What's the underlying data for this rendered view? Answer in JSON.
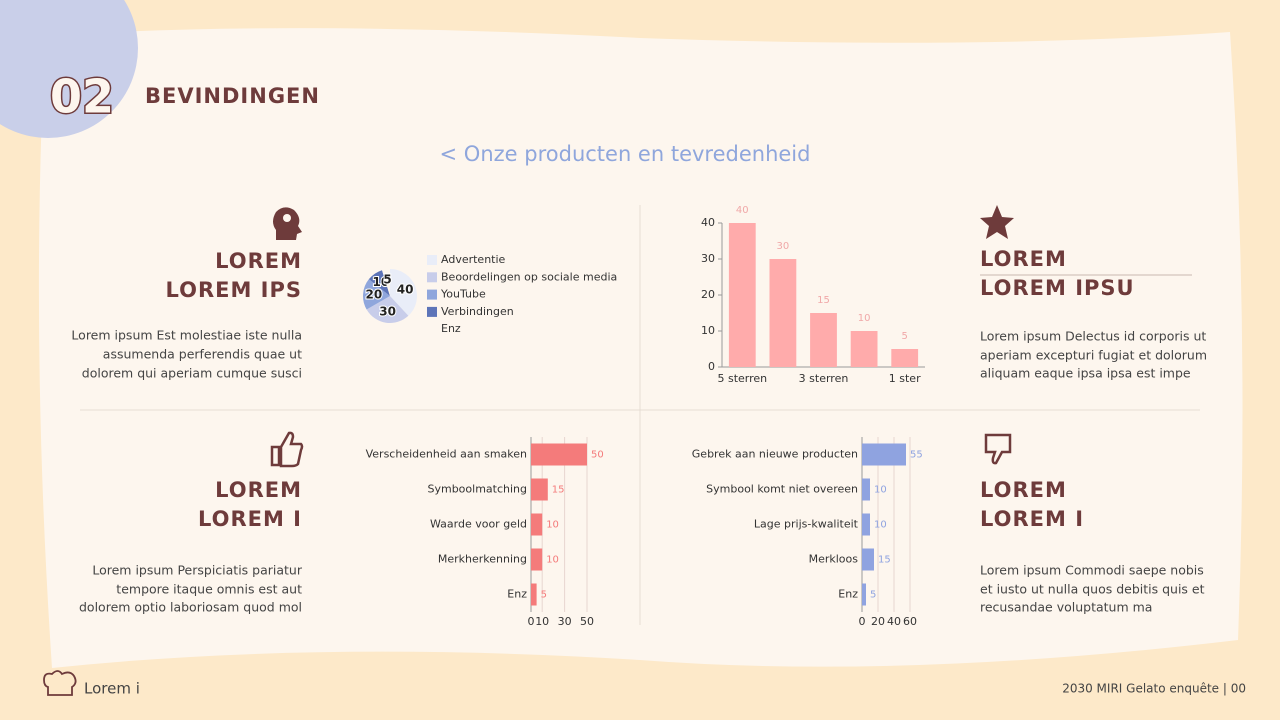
{
  "header": {
    "number": "02",
    "title": "BEVINDINGEN",
    "subtitle": "< Onze producten en tevredenheid"
  },
  "blocks": [
    {
      "heading": [
        "LOREM",
        "LOREM IPS"
      ],
      "body": [
        "Lorem ipsum Est molestiae iste nulla",
        "assumenda perferendis quae ut",
        "dolorem qui aperiam cumque susci"
      ]
    },
    {
      "heading": [
        "LOREM",
        "LOREM IPSU"
      ],
      "body": [
        "Lorem ipsum Delectus id corporis ut",
        "aperiam excepturi fugiat et dolorum",
        "aliquam eaque ipsa ipsa est impe"
      ]
    },
    {
      "heading": [
        "LOREM",
        "LOREM I"
      ],
      "body": [
        "Lorem ipsum Perspiciatis pariatur",
        "tempore itaque omnis est aut",
        "dolorem optio laboriosam quod mol"
      ]
    },
    {
      "heading": [
        "LOREM",
        "LOREM I"
      ],
      "body": [
        "Lorem ipsum Commodi saepe nobis",
        "et iusto ut nulla quos debitis quis et",
        "recusandae voluptatum ma"
      ]
    }
  ],
  "chart_data": [
    {
      "type": "pie",
      "categories": [
        "Advertentie",
        "Beoordelingen op sociale media",
        "YouTube",
        "Verbindingen",
        "Enz"
      ],
      "values": [
        40,
        30,
        20,
        10,
        5
      ],
      "colors": [
        "#e9edf8",
        "#c8cdea",
        "#8fa6dc",
        "#5d74b8",
        "#fdf6ee"
      ]
    },
    {
      "type": "bar",
      "categories": [
        "5 sterren",
        null,
        "3 sterren",
        null,
        "1 ster"
      ],
      "values": [
        40,
        30,
        15,
        10,
        5
      ],
      "color": "#ffabab",
      "ylim": [
        0,
        40
      ],
      "yticks": [
        0,
        10,
        20,
        30,
        40
      ]
    },
    {
      "type": "barh",
      "categories": [
        "Verscheidenheid aan smaken",
        "Symboolmatching",
        "Waarde voor geld",
        "Merkherkenning",
        "Enz"
      ],
      "values": [
        50,
        15,
        10,
        10,
        5
      ],
      "color": "#f47b7b",
      "xlim": [
        0,
        50
      ],
      "xticks": [
        0,
        10,
        30,
        50
      ]
    },
    {
      "type": "barh",
      "categories": [
        "Gebrek aan nieuwe producten",
        "Symbool komt niet overeen",
        "Lage prijs-kwaliteit",
        "Merkloos",
        "Enz"
      ],
      "values": [
        55,
        10,
        10,
        15,
        5
      ],
      "color": "#8fa3e0",
      "xlim": [
        0,
        60
      ],
      "xticks": [
        0,
        20,
        40,
        60
      ]
    }
  ],
  "footer": {
    "left": "Lorem i",
    "right": "2030 MIRI Gelato enquête | 00"
  }
}
